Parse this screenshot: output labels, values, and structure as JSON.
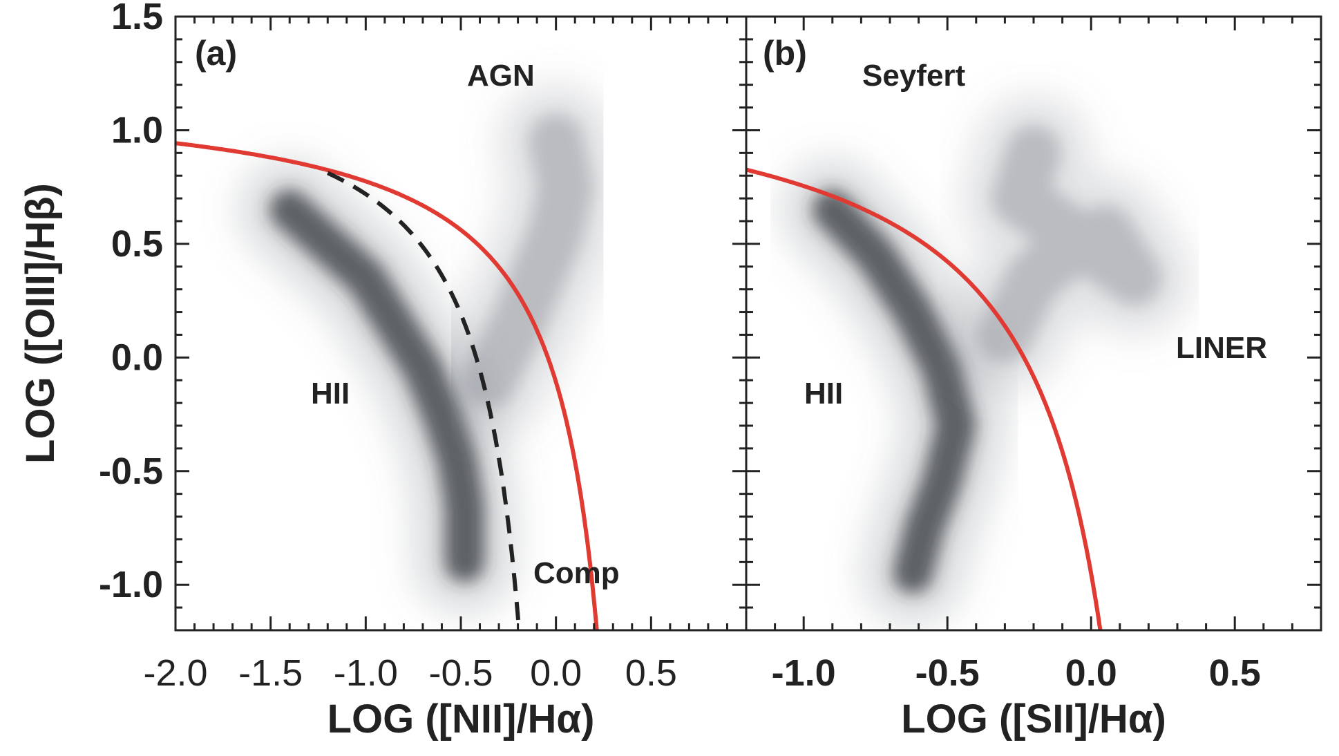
{
  "chart_data": [
    {
      "type": "scatter",
      "panel_label": "(a)",
      "xlabel": "LOG ([NII]/Hα)",
      "ylabel": "LOG ([OIII]/Hβ)",
      "xlim": [
        -2.0,
        1.0
      ],
      "ylim": [
        -1.2,
        1.5
      ],
      "xticks": [
        "-2.0",
        "-1.5",
        "-1.0",
        "-0.5",
        "0.0",
        "0.5"
      ],
      "yticks": [
        "1.5",
        "1.0",
        "0.5",
        "0.0",
        "-0.5",
        "-1.0"
      ],
      "annotations": [
        "AGN",
        "HII",
        "Comp"
      ],
      "curves": [
        {
          "name": "Kewley 2001 maximum starburst",
          "style": "solid",
          "color": "#e03a33",
          "formula": "0.61/(x-0.47)+1.19",
          "domain": [
            -2.0,
            0.22
          ]
        },
        {
          "name": "Kauffmann 2003 demarcation",
          "style": "dashed",
          "color": "#222222",
          "formula": "0.61/(x-0.05)+1.3",
          "domain": [
            -1.2,
            -0.18
          ]
        }
      ],
      "density_clusters": [
        {
          "name": "star-forming sequence",
          "points": [
            [
              -1.4,
              0.65
            ],
            [
              -1.2,
              0.5
            ],
            [
              -1.0,
              0.35
            ],
            [
              -0.85,
              0.15
            ],
            [
              -0.7,
              -0.05
            ],
            [
              -0.6,
              -0.25
            ],
            [
              -0.52,
              -0.45
            ],
            [
              -0.48,
              -0.65
            ],
            [
              -0.48,
              -0.9
            ]
          ]
        },
        {
          "name": "AGN plume",
          "points": [
            [
              -0.35,
              -0.1
            ],
            [
              -0.2,
              0.15
            ],
            [
              -0.1,
              0.35
            ],
            [
              0.0,
              0.55
            ],
            [
              0.05,
              0.75
            ],
            [
              0.0,
              0.95
            ]
          ]
        }
      ]
    },
    {
      "type": "scatter",
      "panel_label": "(b)",
      "xlabel": "LOG ([SII]/Hα)",
      "ylabel": "LOG ([OIII]/Hβ)",
      "xlim": [
        -1.2,
        0.8
      ],
      "ylim": [
        -1.2,
        1.5
      ],
      "xticks": [
        "-1.0",
        "-0.5",
        "0.0",
        "0.5"
      ],
      "annotations": [
        "Seyfert",
        "HII",
        "LINER"
      ],
      "curves": [
        {
          "name": "Kewley 2001 maximum starburst",
          "style": "solid",
          "color": "#e03a33",
          "formula": "0.72/(x-0.32)+1.30",
          "domain": [
            -1.2,
            0.04
          ]
        }
      ],
      "density_clusters": [
        {
          "name": "star-forming sequence",
          "points": [
            [
              -0.9,
              0.65
            ],
            [
              -0.75,
              0.45
            ],
            [
              -0.62,
              0.2
            ],
            [
              -0.52,
              -0.05
            ],
            [
              -0.47,
              -0.3
            ],
            [
              -0.52,
              -0.55
            ],
            [
              -0.58,
              -0.75
            ],
            [
              -0.62,
              -0.95
            ]
          ]
        },
        {
          "name": "AGN plume",
          "points": [
            [
              -0.3,
              0.1
            ],
            [
              -0.2,
              0.35
            ],
            [
              -0.1,
              0.45
            ],
            [
              0.05,
              0.55
            ],
            [
              0.15,
              0.35
            ],
            [
              -0.25,
              0.7
            ],
            [
              -0.2,
              0.9
            ]
          ]
        }
      ]
    }
  ]
}
